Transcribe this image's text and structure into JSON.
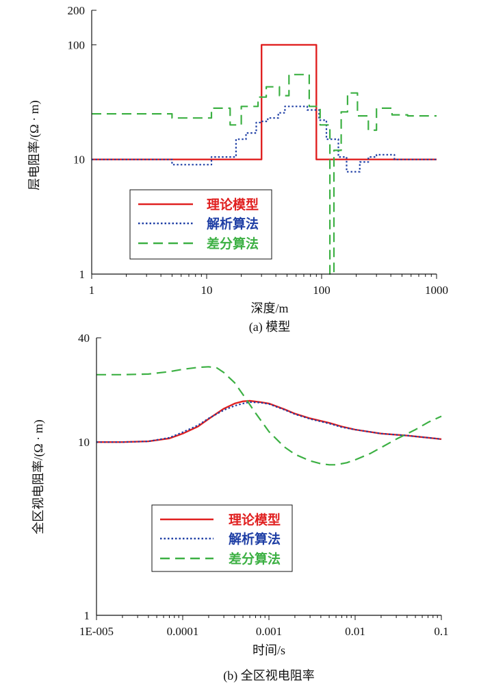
{
  "colors": {
    "theory": "#e02020",
    "analytic": "#1f3fa5",
    "difference": "#3cb043"
  },
  "chart_data": [
    {
      "type": "line",
      "caption": "(a) 模型",
      "xlabel": "深度/m",
      "ylabel": "层电阻率/(Ω · m)",
      "xscale": "log",
      "yscale": "log",
      "xlim": [
        1,
        1000
      ],
      "ylim": [
        1,
        200
      ],
      "xticks": [
        1,
        10,
        100,
        1000
      ],
      "xtick_labels": [
        "1",
        "10",
        "100",
        "1000"
      ],
      "yticks": [
        1,
        10,
        100,
        200
      ],
      "ytick_labels": [
        "1",
        "10",
        "100",
        "200"
      ],
      "legend": {
        "position": "lower-left",
        "entries": [
          "理论模型",
          "解析算法",
          "差分算法"
        ]
      },
      "series": [
        {
          "name": "理论模型",
          "style": "solid",
          "color_key": "theory",
          "x": [
            1,
            30,
            30,
            90,
            90,
            1000
          ],
          "y": [
            10,
            10,
            100,
            100,
            10,
            10
          ]
        },
        {
          "name": "解析算法",
          "style": "dotted",
          "color_key": "analytic",
          "x": [
            1,
            5,
            5,
            11,
            11,
            18,
            18,
            22,
            22,
            27,
            27,
            30,
            30,
            34,
            34,
            42,
            42,
            48,
            48,
            75,
            75,
            95,
            95,
            110,
            110,
            140,
            140,
            165,
            165,
            215,
            215,
            255,
            255,
            300,
            300,
            430,
            430,
            1000
          ],
          "y": [
            10,
            10,
            9,
            9,
            10.5,
            10.5,
            15,
            15,
            17,
            17,
            21,
            21,
            21.5,
            21.5,
            23,
            23,
            25.5,
            25.5,
            29,
            29,
            27,
            27,
            22,
            22,
            15,
            15,
            10.5,
            10.5,
            7.8,
            7.8,
            9.5,
            9.5,
            10.5,
            10.5,
            11,
            11,
            10,
            10
          ]
        },
        {
          "name": "差分算法",
          "style": "dashed",
          "color_key": "difference",
          "x": [
            1,
            5,
            5,
            11,
            11,
            16,
            16,
            20,
            20,
            28,
            28,
            33,
            33,
            43,
            43,
            52,
            52,
            78,
            78,
            97,
            97,
            118,
            118,
            128,
            128,
            148,
            148,
            168,
            168,
            205,
            205,
            255,
            255,
            300,
            300,
            410,
            410,
            560,
            560,
            1000
          ],
          "y": [
            25,
            25,
            23,
            23,
            28,
            28,
            20,
            20,
            29,
            29,
            35,
            35,
            43,
            43,
            36,
            36,
            55,
            55,
            29,
            29,
            20,
            20,
            1.0,
            1.0,
            12,
            12,
            26,
            26,
            38,
            38,
            24,
            24,
            18,
            18,
            28,
            28,
            24.5,
            24.5,
            24,
            24
          ]
        }
      ]
    },
    {
      "type": "line",
      "caption": "(b) 全区视电阻率",
      "xlabel": "时间/s",
      "ylabel": "全区视电阻率/(Ω · m)",
      "xscale": "log",
      "yscale": "log",
      "xlim": [
        1e-05,
        0.1
      ],
      "ylim": [
        1,
        40
      ],
      "xticks": [
        1e-05,
        0.0001,
        0.001,
        0.01,
        0.1
      ],
      "xtick_labels": [
        "1E-005",
        "0.0001",
        "0.001",
        "0.01",
        "0.1"
      ],
      "yticks": [
        1,
        10,
        40
      ],
      "ytick_labels": [
        "1",
        "10",
        "40"
      ],
      "legend": {
        "position": "lower-left",
        "entries": [
          "理论模型",
          "解析算法",
          "差分算法"
        ]
      },
      "series": [
        {
          "name": "理论模型",
          "style": "solid",
          "color_key": "theory",
          "x": [
            1e-05,
            2e-05,
            4e-05,
            7e-05,
            0.0001,
            0.00015,
            0.0002,
            0.0003,
            0.0004,
            0.0005,
            0.0006,
            0.0008,
            0.001,
            0.0015,
            0.002,
            0.003,
            0.005,
            0.007,
            0.01,
            0.02,
            0.04,
            0.07,
            0.1
          ],
          "y": [
            10,
            10,
            10.1,
            10.5,
            11.2,
            12.3,
            13.6,
            15.6,
            16.7,
            17.2,
            17.3,
            17.0,
            16.7,
            15.5,
            14.6,
            13.7,
            12.9,
            12.3,
            11.8,
            11.2,
            10.9,
            10.6,
            10.4
          ]
        },
        {
          "name": "解析算法",
          "style": "dotted",
          "color_key": "analytic",
          "x": [
            1e-05,
            2e-05,
            4e-05,
            7e-05,
            0.0001,
            0.00015,
            0.0002,
            0.0003,
            0.0004,
            0.0005,
            0.0006,
            0.0008,
            0.001,
            0.0015,
            0.002,
            0.003,
            0.005,
            0.007,
            0.01,
            0.02,
            0.04,
            0.07,
            0.1
          ],
          "y": [
            10,
            10,
            10.1,
            10.6,
            11.4,
            12.5,
            13.7,
            15.3,
            16.2,
            16.7,
            17.0,
            16.9,
            16.6,
            15.4,
            14.5,
            13.6,
            12.8,
            12.2,
            11.8,
            11.2,
            10.9,
            10.6,
            10.4
          ]
        },
        {
          "name": "差分算法",
          "style": "dashed",
          "color_key": "difference",
          "x": [
            1e-05,
            2e-05,
            4e-05,
            7e-05,
            0.0001,
            0.00015,
            0.0002,
            0.00025,
            0.0003,
            0.0004,
            0.0005,
            0.0007,
            0.001,
            0.0015,
            0.002,
            0.003,
            0.004,
            0.005,
            0.006,
            0.008,
            0.01,
            0.015,
            0.02,
            0.03,
            0.05,
            0.07,
            0.1
          ],
          "y": [
            24.5,
            24.5,
            24.7,
            25.5,
            26.3,
            27.0,
            27.2,
            26.8,
            25.2,
            22.0,
            18.8,
            14.7,
            11.5,
            9.4,
            8.5,
            7.8,
            7.5,
            7.4,
            7.4,
            7.6,
            7.9,
            8.6,
            9.3,
            10.4,
            11.8,
            13.0,
            14.1
          ]
        }
      ]
    }
  ]
}
